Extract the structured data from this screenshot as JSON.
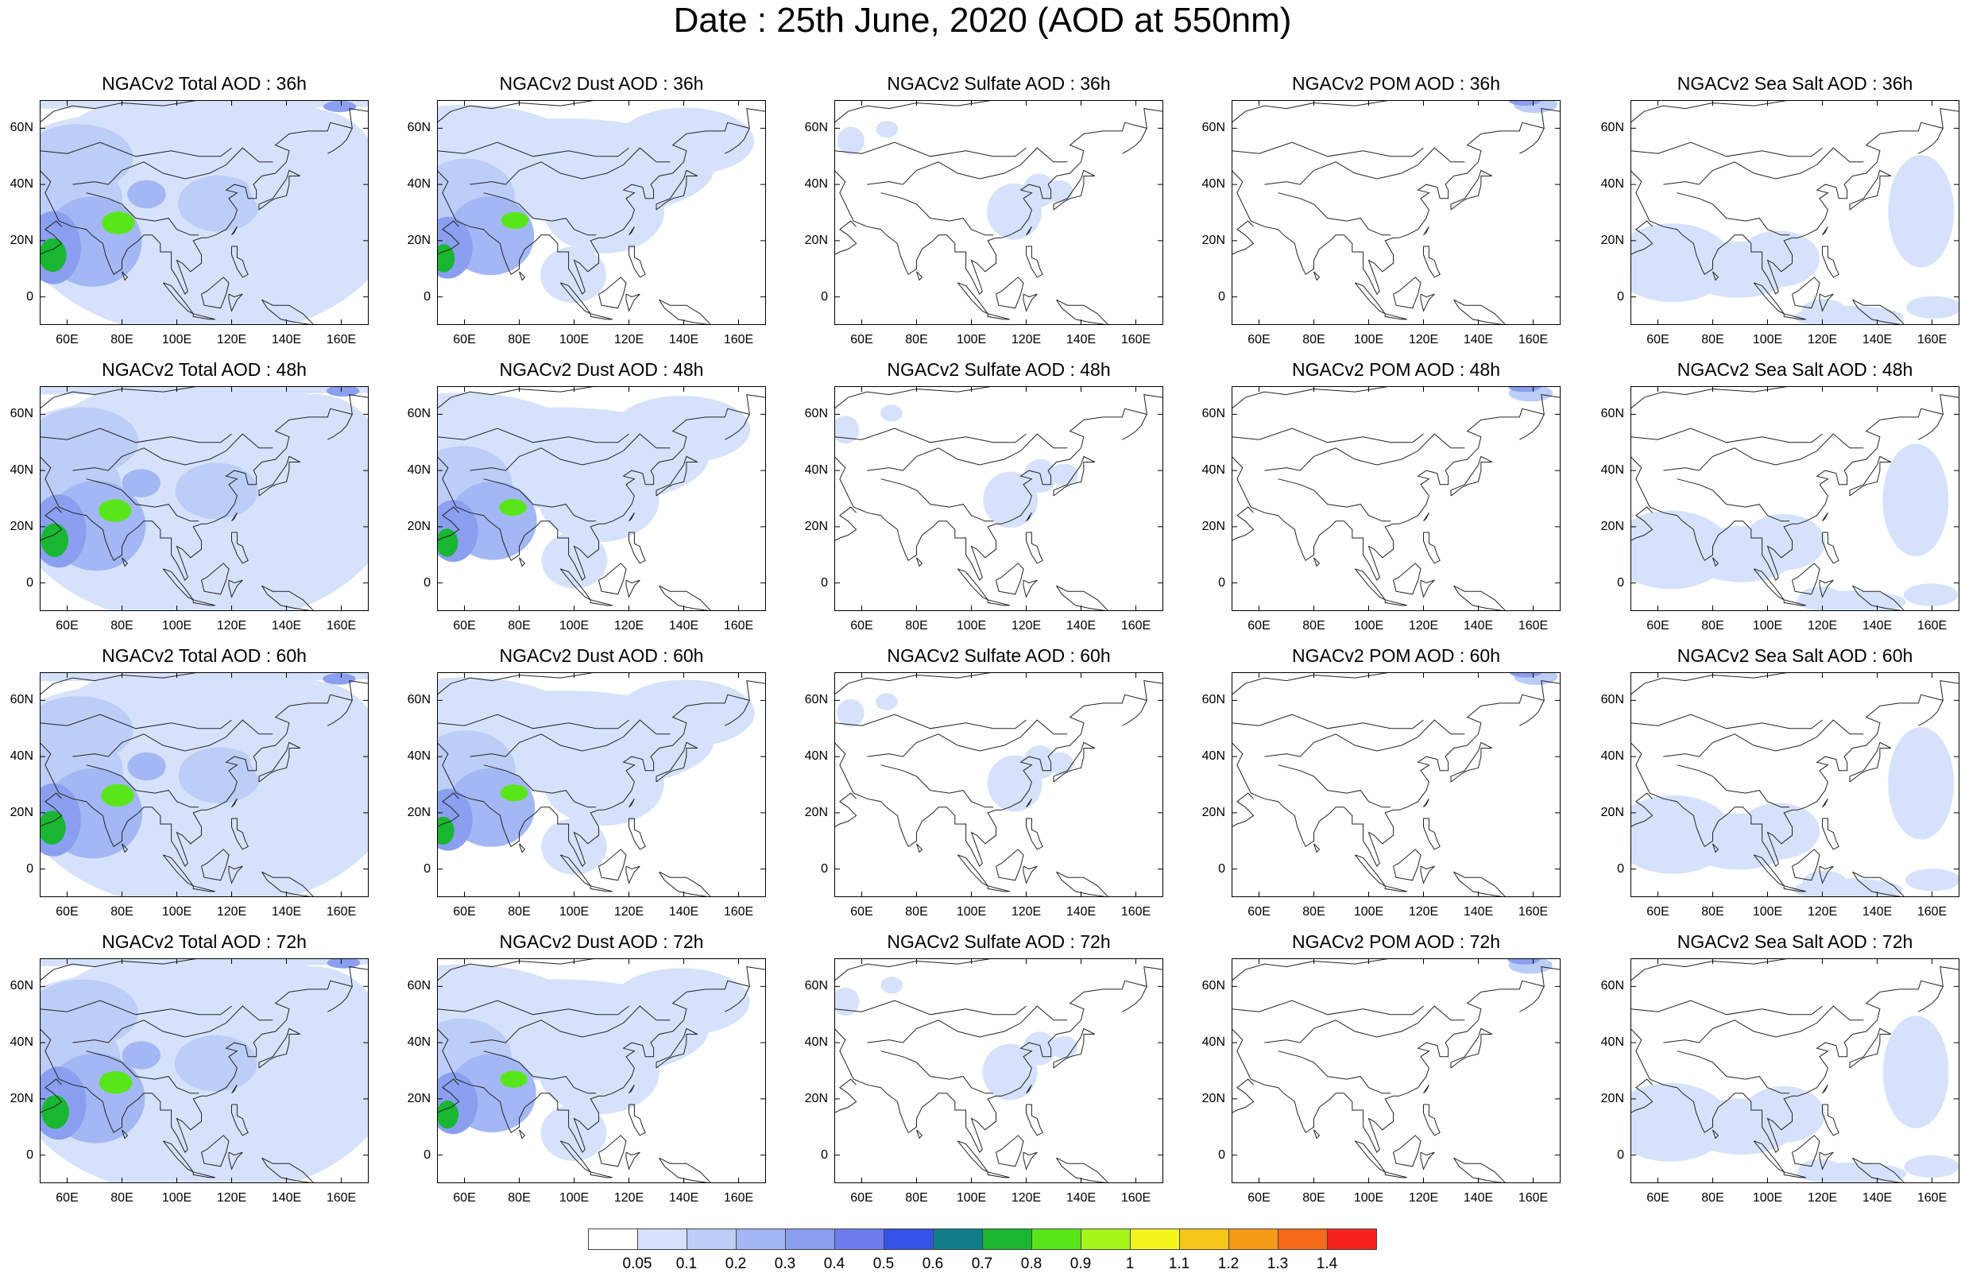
{
  "title": "Date : 25th June, 2020 (AOD at 550nm)",
  "columns": [
    {
      "key": "total",
      "titles": [
        "NGACv2 Total AOD : 36h",
        "NGACv2 Total AOD : 48h",
        "NGACv2 Total AOD : 60h",
        "NGACv2 Total AOD : 72h"
      ]
    },
    {
      "key": "dust",
      "titles": [
        "NGACv2 Dust AOD : 36h",
        "NGACv2 Dust AOD : 48h",
        "NGACv2 Dust AOD : 60h",
        "NGACv2 Dust AOD : 72h"
      ]
    },
    {
      "key": "sulfate",
      "titles": [
        "NGACv2 Sulfate AOD : 36h",
        "NGACv2 Sulfate AOD : 48h",
        "NGACv2 Sulfate AOD : 60h",
        "NGACv2 Sulfate AOD : 72h"
      ]
    },
    {
      "key": "pom",
      "titles": [
        "NGACv2 POM AOD : 36h",
        "NGACv2 POM AOD : 48h",
        "NGACv2 POM AOD : 60h",
        "NGACv2 POM AOD : 72h"
      ]
    },
    {
      "key": "seasalt",
      "titles": [
        "NGACv2 Sea Salt AOD : 36h",
        "NGACv2 Sea Salt AOD : 48h",
        "NGACv2 Sea Salt AOD : 60h",
        "NGACv2 Sea Salt  AOD : 72h"
      ]
    }
  ],
  "map": {
    "lon_range": [
      50,
      170
    ],
    "lat_range": [
      -10,
      70
    ],
    "lon_ticks": [
      "60E",
      "80E",
      "100E",
      "120E",
      "140E",
      "160E"
    ],
    "lat_ticks": [
      "60N",
      "40N",
      "20N",
      "0"
    ]
  },
  "colorbar": {
    "labels": [
      "0.05",
      "0.1",
      "0.2",
      "0.3",
      "0.4",
      "0.5",
      "0.6",
      "0.7",
      "0.8",
      "0.9",
      "1",
      "1.1",
      "1.2",
      "1.3",
      "1.4"
    ],
    "colors": [
      "#ffffff",
      "#d6e2fb",
      "#bccdf7",
      "#a3b7f4",
      "#8b9ff0",
      "#6d7ced",
      "#3552e8",
      "#117e8a",
      "#19b632",
      "#58e61b",
      "#a5f51b",
      "#f5f51d",
      "#f5c71b",
      "#f59b17",
      "#f5691a",
      "#f5221c"
    ]
  },
  "overlay_colors": {
    "coastline": "#222222",
    "axis": "#000000"
  }
}
